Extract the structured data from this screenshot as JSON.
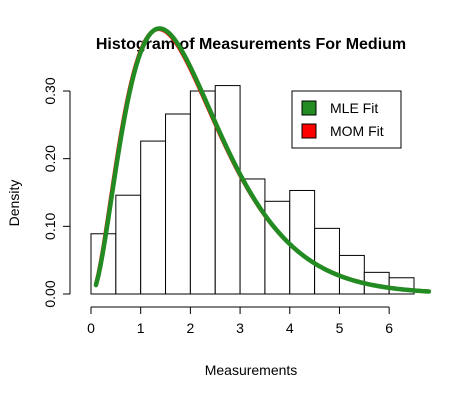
{
  "chart_data": {
    "type": "histogram",
    "title": "Histogram of Measurements For Medium",
    "xlabel": "Measurements",
    "ylabel": "Density",
    "xlim": [
      0,
      6.8
    ],
    "ylim": [
      0,
      0.31
    ],
    "x_ticks": [
      {
        "value": 0,
        "label": "0"
      },
      {
        "value": 1,
        "label": "1"
      },
      {
        "value": 2,
        "label": "2"
      },
      {
        "value": 3,
        "label": "3"
      },
      {
        "value": 4,
        "label": "4"
      },
      {
        "value": 5,
        "label": "5"
      },
      {
        "value": 6,
        "label": "6"
      }
    ],
    "y_ticks": [
      {
        "value": 0,
        "label": "0.00"
      },
      {
        "value": 0.1,
        "label": "0.10"
      },
      {
        "value": 0.2,
        "label": "0.20"
      },
      {
        "value": 0.3,
        "label": "0.30"
      }
    ],
    "bins": [
      {
        "start": 0.0,
        "end": 0.5,
        "density": 0.089
      },
      {
        "start": 0.5,
        "end": 1.0,
        "density": 0.146
      },
      {
        "start": 1.0,
        "end": 1.5,
        "density": 0.226
      },
      {
        "start": 1.5,
        "end": 2.0,
        "density": 0.266
      },
      {
        "start": 2.0,
        "end": 2.5,
        "density": 0.3
      },
      {
        "start": 2.5,
        "end": 3.0,
        "density": 0.308
      },
      {
        "start": 3.0,
        "end": 3.5,
        "density": 0.17
      },
      {
        "start": 3.5,
        "end": 4.0,
        "density": 0.137
      },
      {
        "start": 4.0,
        "end": 4.5,
        "density": 0.153
      },
      {
        "start": 4.5,
        "end": 5.0,
        "density": 0.097
      },
      {
        "start": 5.0,
        "end": 5.5,
        "density": 0.057
      },
      {
        "start": 5.5,
        "end": 6.0,
        "density": 0.032
      },
      {
        "start": 6.0,
        "end": 6.5,
        "density": 0.024
      }
    ],
    "series": [
      {
        "name": "MOM Fit",
        "color": "#ff0000",
        "shape": 2.95,
        "rate": 1.43,
        "x_range": [
          0.1,
          6.8
        ]
      },
      {
        "name": "MLE Fit",
        "color": "#228b22",
        "shape": 3.0,
        "rate": 1.45,
        "x_range": [
          0.1,
          6.8
        ]
      }
    ],
    "legend": {
      "position": "top-right",
      "items": [
        {
          "label": "MLE Fit",
          "color": "#228b22"
        },
        {
          "label": "MOM Fit",
          "color": "#ff0000"
        }
      ]
    },
    "grid": false
  }
}
